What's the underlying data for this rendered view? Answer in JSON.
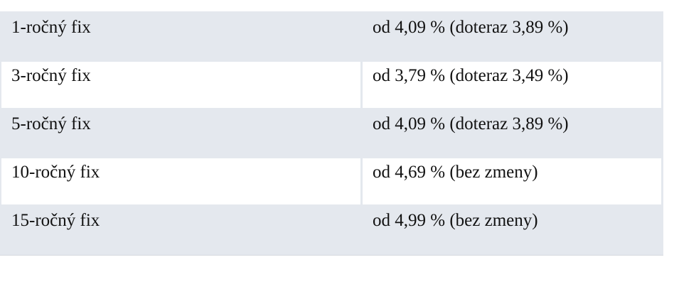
{
  "rows": [
    {
      "term": "1-ročný fix",
      "rate": "od 4,09 % (doteraz 3,89 %)"
    },
    {
      "term": "3-ročný fix",
      "rate": "od 3,79 % (doteraz 3,49 %)"
    },
    {
      "term": "5-ročný fix",
      "rate": "od 4,09 % (doteraz 3,89 %)"
    },
    {
      "term": "10-ročný fix",
      "rate": "od 4,69 % (bez zmeny)"
    },
    {
      "term": "15-ročný fix",
      "rate": "od 4,99 % (bez zmeny)"
    }
  ]
}
